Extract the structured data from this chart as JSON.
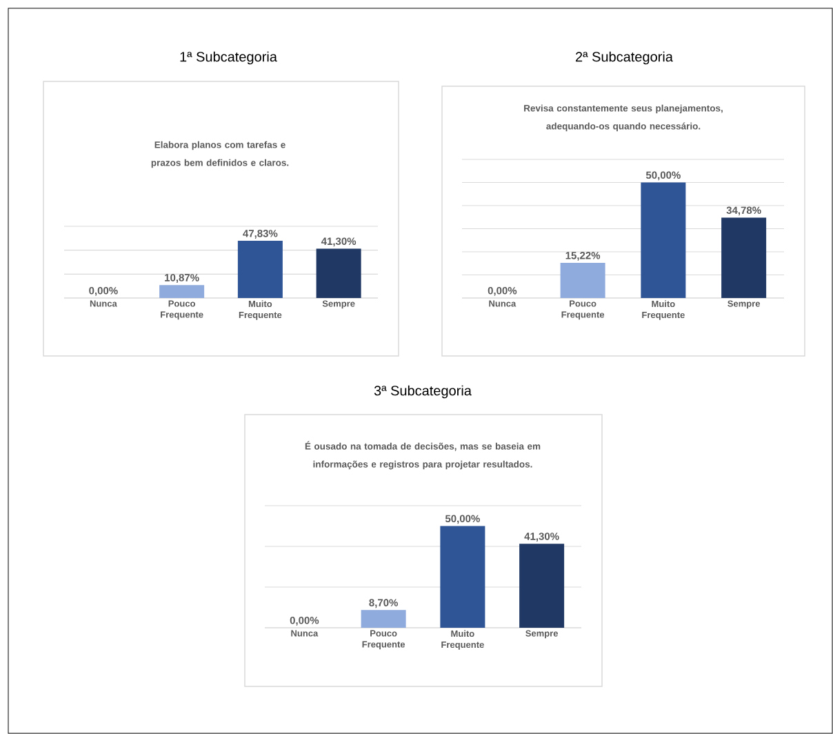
{
  "chart_data": [
    {
      "type": "bar",
      "title": "1ª Subcategoria",
      "subtitle": "Elabora planos com tarefas e prazos bem definidos e claros.",
      "categories": [
        "Nunca",
        "Pouco Frequente",
        "Muito Frequente",
        "Sempre"
      ],
      "values": [
        0,
        10.87,
        47.83,
        41.3
      ],
      "colors": [
        "#8faadc",
        "#8faadc",
        "#2f5597",
        "#203864"
      ],
      "value_labels": [
        "0,00%",
        "10,87%",
        "47,83%",
        "41,30%"
      ],
      "ylim": [
        0,
        60
      ],
      "yticks": [
        {
          "value": 0,
          "label": null
        },
        {
          "value": 20,
          "label": null
        },
        {
          "value": 40,
          "label": null
        },
        {
          "value": 60,
          "label": null
        }
      ],
      "grid": "y",
      "tick_labels": "x"
    },
    {
      "type": "bar",
      "title": "2ª Subcategoria",
      "subtitle": "Revisa constantemente seus planejamentos, adequando-os quando necessário.",
      "categories": [
        "Nunca",
        "Pouco Frequente",
        "Muito Frequente",
        "Sempre"
      ],
      "values": [
        0,
        15.22,
        50,
        34.78
      ],
      "colors": [
        "#8faadc",
        "#8faadc",
        "#2f5597",
        "#203864"
      ],
      "value_labels": [
        "0,00%",
        "15,22%",
        "50,00%",
        "34,78%"
      ],
      "ylim": [
        0,
        60
      ],
      "yticks": [
        {
          "value": 0,
          "label": null
        },
        {
          "value": 10,
          "label": null
        },
        {
          "value": 20,
          "label": null
        },
        {
          "value": 30,
          "label": null
        },
        {
          "value": 40,
          "label": null
        },
        {
          "value": 50,
          "label": null
        },
        {
          "value": 60,
          "label": null
        }
      ],
      "grid": "y",
      "tick_labels": "x"
    },
    {
      "type": "bar",
      "title": "3ª Subcategoria",
      "subtitle": "É ousado na tomada de decisões, mas se baseia em informações e registros para projetar resultados.",
      "categories": [
        "Nunca",
        "Pouco Frequente",
        "Muito Frequente",
        "Sempre"
      ],
      "values": [
        0,
        8.7,
        50,
        41.3
      ],
      "colors": [
        "#8faadc",
        "#8faadc",
        "#2f5597",
        "#203864"
      ],
      "value_labels": [
        "0,00%",
        "8,70%",
        "50,00%",
        "41,30%"
      ],
      "ylim": [
        0,
        60
      ],
      "yticks": [
        {
          "value": 0,
          "label": null
        },
        {
          "value": 20,
          "label": null
        },
        {
          "value": 40,
          "label": null
        },
        {
          "value": 60,
          "label": null
        }
      ],
      "grid": "y",
      "tick_labels": "x"
    }
  ]
}
